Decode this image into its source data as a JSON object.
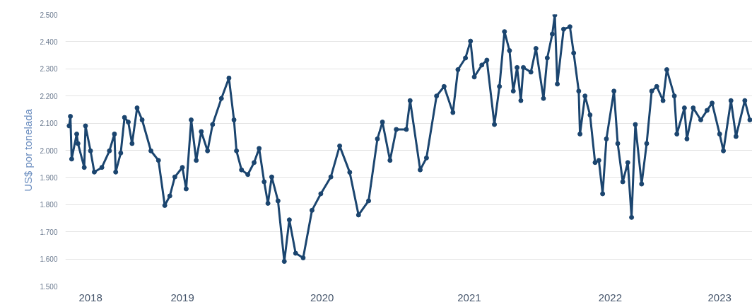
{
  "chart_data": {
    "type": "line",
    "ylabel": "US$ por tonelada",
    "x": [
      2017.83,
      2017.84,
      2017.85,
      2017.89,
      2017.9,
      2017.95,
      2017.96,
      2018.0,
      2018.03,
      2018.09,
      2018.15,
      2018.19,
      2018.2,
      2018.24,
      2018.27,
      2018.3,
      2018.33,
      2018.37,
      2018.41,
      2018.48,
      2018.54,
      2018.59,
      2018.63,
      2018.67,
      2018.73,
      2018.76,
      2018.8,
      2018.84,
      2018.88,
      2018.93,
      2018.97,
      2019.04,
      2019.1,
      2019.14,
      2019.16,
      2019.2,
      2019.25,
      2019.3,
      2019.34,
      2019.38,
      2019.41,
      2019.44,
      2019.49,
      2019.54,
      2019.58,
      2019.63,
      2019.69,
      2019.76,
      2019.83,
      2019.91,
      2019.98,
      2020.06,
      2020.13,
      2020.21,
      2020.28,
      2020.32,
      2020.38,
      2020.43,
      2020.51,
      2020.54,
      2020.62,
      2020.67,
      2020.75,
      2020.81,
      2020.88,
      2020.92,
      2020.98,
      2021.02,
      2021.05,
      2021.11,
      2021.15,
      2021.21,
      2021.25,
      2021.29,
      2021.33,
      2021.36,
      2021.39,
      2021.42,
      2021.44,
      2021.5,
      2021.54,
      2021.6,
      2021.63,
      2021.67,
      2021.69,
      2021.71,
      2021.76,
      2021.81,
      2021.84,
      2021.88,
      2021.89,
      2021.93,
      2021.97,
      2022.01,
      2022.04,
      2022.07,
      2022.1,
      2022.16,
      2022.19,
      2022.23,
      2022.27,
      2022.3,
      2022.33,
      2022.38,
      2022.42,
      2022.46,
      2022.5,
      2022.55,
      2022.58,
      2022.64,
      2022.66,
      2022.72,
      2022.74,
      2022.79,
      2022.85,
      2022.9,
      2022.94,
      2023.0,
      2023.03,
      2023.09,
      2023.13,
      2023.2,
      2023.24
    ],
    "series": [
      {
        "color": "#1b456f",
        "values": [
          2090,
          2125,
          1968,
          2060,
          2025,
          1937,
          2090,
          1998,
          1920,
          1937,
          1998,
          2060,
          1920,
          1990,
          2121,
          2104,
          2025,
          2156,
          2112,
          1998,
          1963,
          1797,
          1832,
          1902,
          1937,
          1858,
          2112,
          1963,
          2069,
          1998,
          2095,
          2191,
          2266,
          2112,
          1998,
          1928,
          1911,
          1955,
          2007,
          1884,
          1805,
          1902,
          1814,
          1591,
          1744,
          1621,
          1604,
          1779,
          1840,
          1902,
          2016,
          1919,
          1762,
          1814,
          2042,
          2104,
          1963,
          2077,
          2077,
          2183,
          1928,
          1972,
          2200,
          2235,
          2139,
          2297,
          2340,
          2402,
          2270,
          2314,
          2332,
          2095,
          2235,
          2437,
          2367,
          2218,
          2305,
          2183,
          2305,
          2288,
          2375,
          2191,
          2340,
          2428,
          2498,
          2244,
          2446,
          2455,
          2358,
          2218,
          2060,
          2200,
          2130,
          1955,
          1963,
          1840,
          2042,
          2218,
          2025,
          1884,
          1955,
          1753,
          2095,
          1876,
          2025,
          2218,
          2235,
          2183,
          2297,
          2200,
          2060,
          2156,
          2042,
          2156,
          2112,
          2147,
          2174,
          2060,
          1998,
          2183,
          2051,
          2183,
          2112
        ]
      }
    ],
    "xlim": [
      2017.8,
      2023.26
    ],
    "xticks": [
      {
        "value": 2018.0,
        "label": "2018"
      },
      {
        "value": 2018.73,
        "label": "2019"
      },
      {
        "value": 2019.84,
        "label": "2020"
      },
      {
        "value": 2021.01,
        "label": "2021"
      },
      {
        "value": 2022.13,
        "label": "2022"
      },
      {
        "value": 2023.0,
        "label": "2023"
      }
    ],
    "ylim": [
      1500,
      2500
    ],
    "yticks": [
      {
        "value": 1500,
        "label": "1.500"
      },
      {
        "value": 1600,
        "label": "1.600"
      },
      {
        "value": 1700,
        "label": "1.700"
      },
      {
        "value": 1800,
        "label": "1.800"
      },
      {
        "value": 1900,
        "label": "1.900"
      },
      {
        "value": 2000,
        "label": "2.000"
      },
      {
        "value": 2100,
        "label": "2.100"
      },
      {
        "value": 2200,
        "label": "2.200"
      },
      {
        "value": 2300,
        "label": "2.300"
      },
      {
        "value": 2400,
        "label": "2.400"
      },
      {
        "value": 2500,
        "label": "2.500"
      }
    ],
    "grid": "y",
    "marker": "circle",
    "line_style": "solid"
  }
}
